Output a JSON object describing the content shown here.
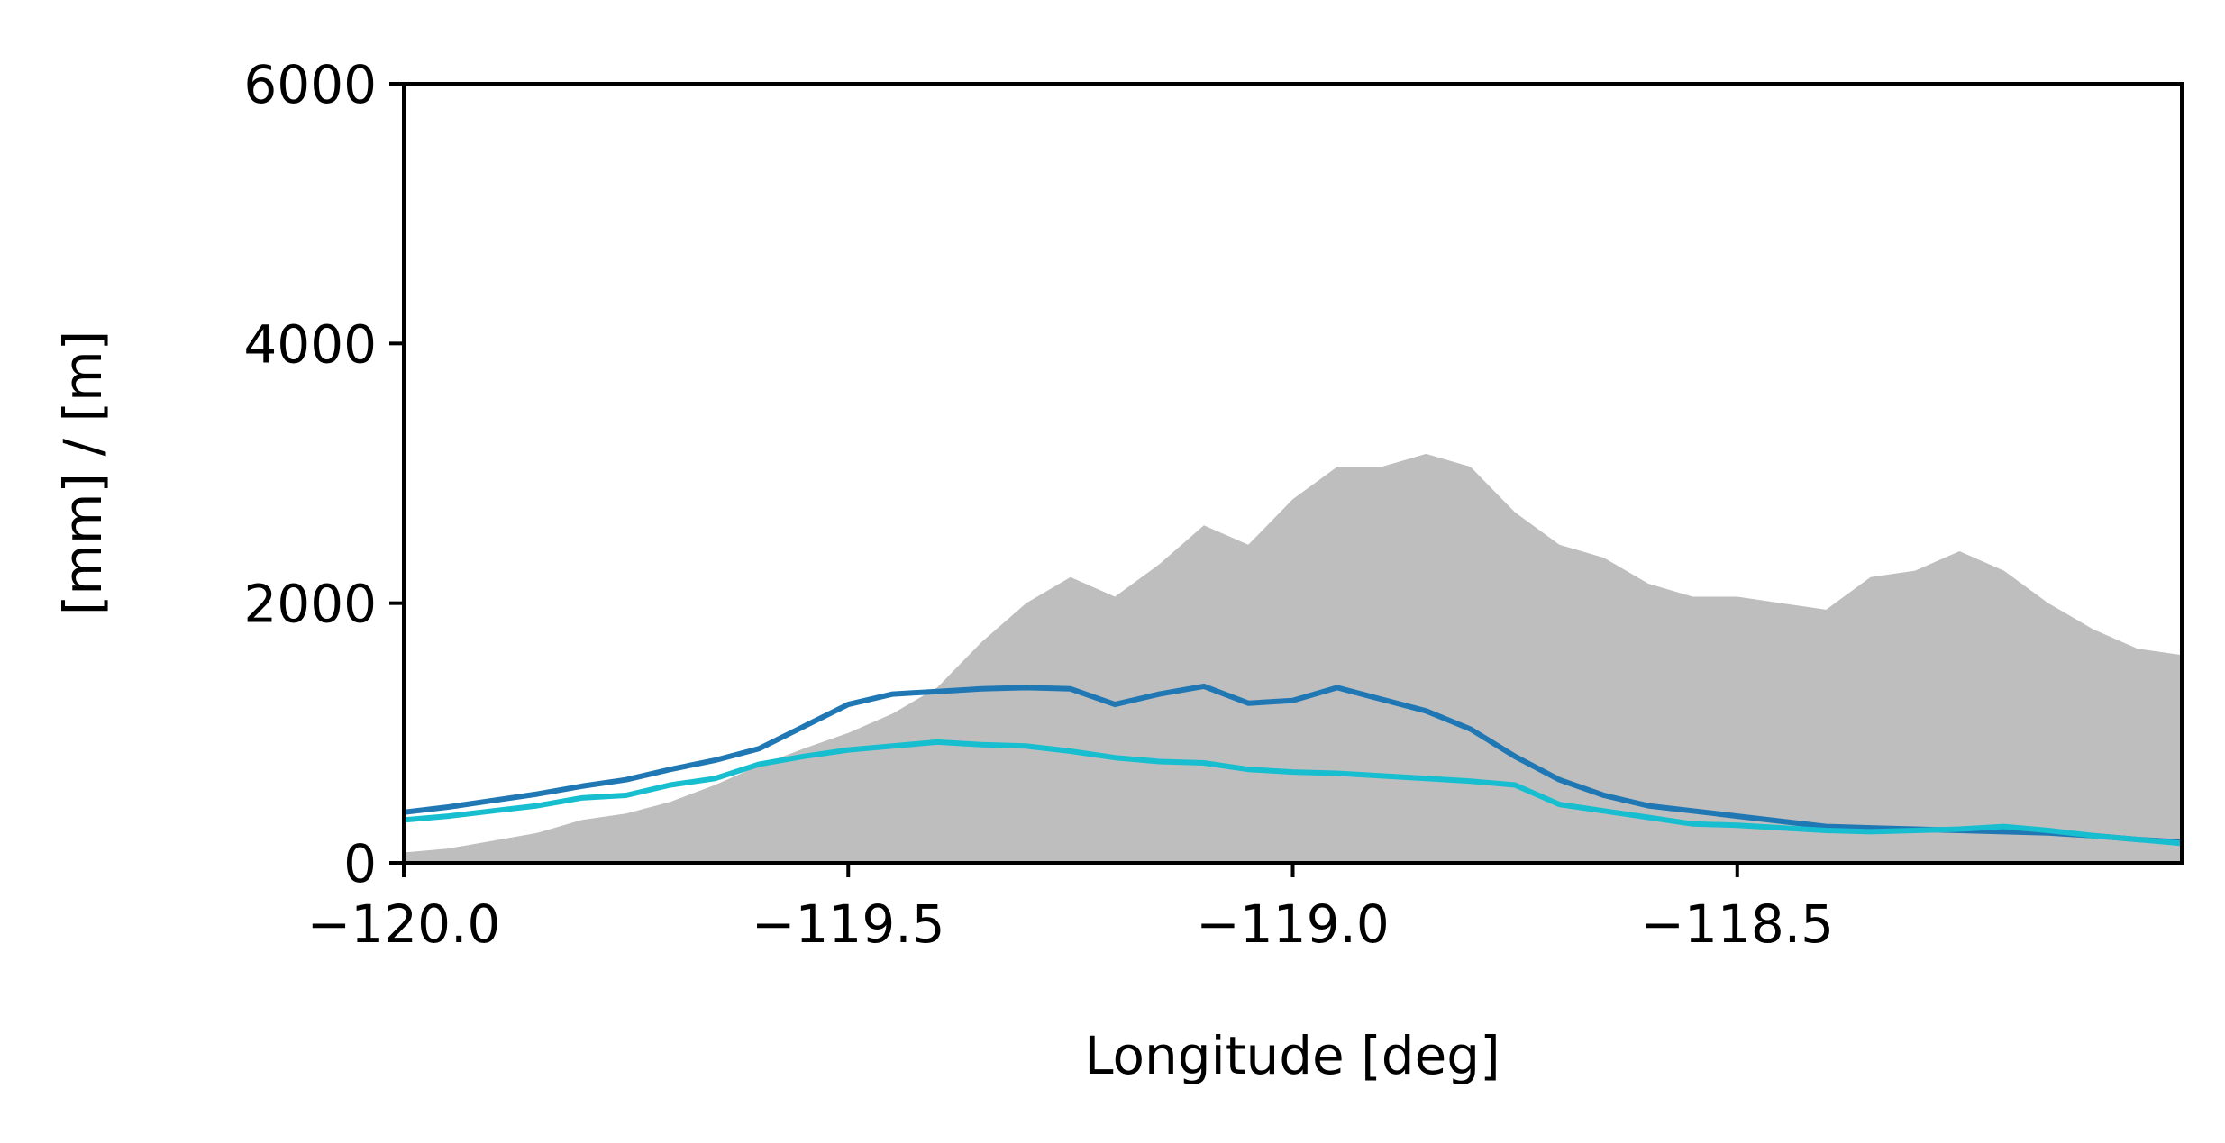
{
  "chart_data": {
    "type": "area",
    "title": "",
    "xlabel": "Longitude [deg]",
    "ylabel": "[mm] / [m]",
    "xlim": [
      -120.0,
      -118.0
    ],
    "ylim": [
      0,
      6000
    ],
    "xticks": [
      -120.0,
      -119.5,
      -119.0,
      -118.5
    ],
    "xtick_labels": [
      "−120.0",
      "−119.5",
      "−119.0",
      "−118.5"
    ],
    "yticks": [
      0,
      2000,
      4000,
      6000
    ],
    "ytick_labels": [
      "0",
      "2000",
      "4000",
      "6000"
    ],
    "grid": false,
    "legend": "none",
    "x": [
      -120.0,
      -119.95,
      -119.9,
      -119.85,
      -119.8,
      -119.75,
      -119.7,
      -119.65,
      -119.6,
      -119.55,
      -119.5,
      -119.45,
      -119.4,
      -119.35,
      -119.3,
      -119.25,
      -119.2,
      -119.15,
      -119.1,
      -119.05,
      -119.0,
      -118.95,
      -118.9,
      -118.85,
      -118.8,
      -118.75,
      -118.7,
      -118.65,
      -118.6,
      -118.55,
      -118.5,
      -118.45,
      -118.4,
      -118.35,
      -118.3,
      -118.25,
      -118.2,
      -118.15,
      -118.1,
      -118.05,
      -118.0
    ],
    "series": [
      {
        "kind": "area",
        "color": "#bebebe",
        "values": [
          80,
          110,
          170,
          230,
          330,
          380,
          470,
          600,
          750,
          880,
          1000,
          1150,
          1350,
          1700,
          2000,
          2200,
          2050,
          2300,
          2600,
          2450,
          2800,
          3050,
          3050,
          3150,
          3050,
          2700,
          2450,
          2350,
          2150,
          2050,
          2050,
          2000,
          1950,
          2200,
          2250,
          2400,
          2250,
          2000,
          1800,
          1650,
          1600
        ]
      },
      {
        "kind": "line",
        "color": "#1f77b4",
        "values": [
          390,
          430,
          480,
          530,
          590,
          640,
          720,
          790,
          880,
          1050,
          1220,
          1300,
          1320,
          1340,
          1350,
          1340,
          1220,
          1300,
          1360,
          1230,
          1250,
          1350,
          1260,
          1170,
          1030,
          820,
          640,
          520,
          440,
          400,
          360,
          320,
          280,
          270,
          260,
          250,
          240,
          230,
          210,
          180,
          160
        ]
      },
      {
        "kind": "line",
        "color": "#17becf",
        "values": [
          330,
          360,
          400,
          440,
          500,
          520,
          600,
          650,
          760,
          820,
          870,
          900,
          930,
          910,
          900,
          860,
          810,
          780,
          770,
          720,
          700,
          690,
          670,
          650,
          630,
          600,
          450,
          400,
          350,
          300,
          290,
          270,
          250,
          240,
          250,
          260,
          280,
          250,
          210,
          180,
          150
        ]
      }
    ]
  }
}
